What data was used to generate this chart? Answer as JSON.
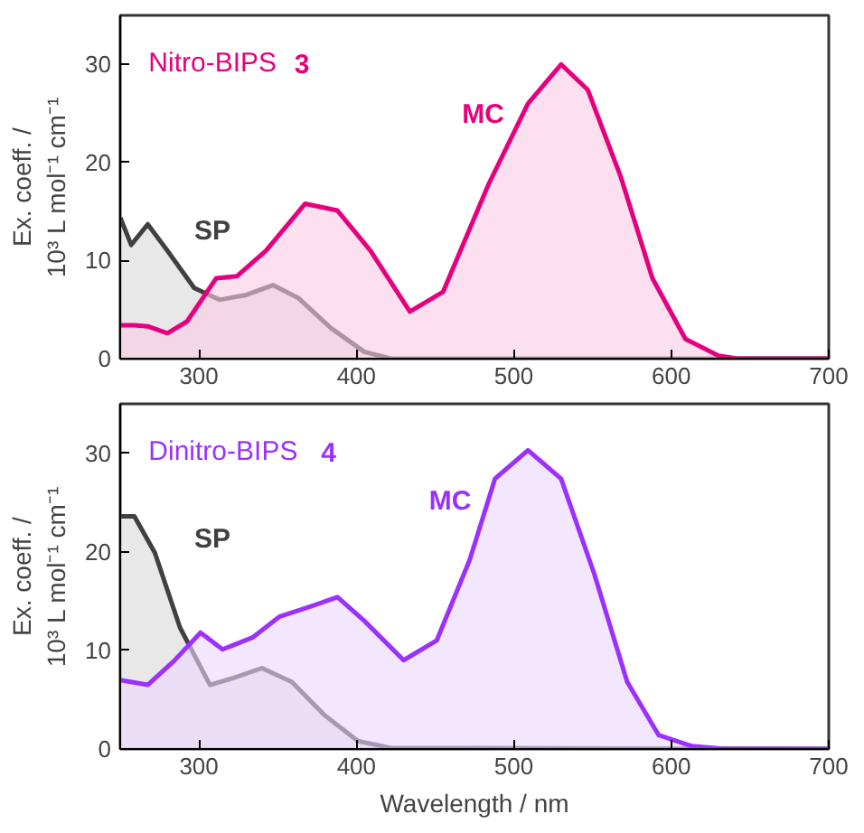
{
  "chart_data": [
    {
      "type": "area",
      "title": "Nitro-BIPS 3",
      "ylabel": "Ex. coeff. /\n10³ L mol⁻¹ cm⁻¹",
      "xlim": [
        250,
        700
      ],
      "ylim": [
        0,
        35
      ],
      "xticks": [
        300,
        400,
        500,
        600,
        700
      ],
      "yticks": [
        0,
        10,
        20,
        30
      ],
      "grid": false,
      "series": [
        {
          "name": "SP",
          "color": "#404040",
          "x": [
            250,
            257,
            267.5,
            280,
            297,
            313,
            330,
            347,
            363,
            384,
            405,
            422,
            700
          ],
          "values": [
            14.4,
            11.6,
            13.7,
            11,
            7.2,
            6,
            6.5,
            7.5,
            6.2,
            3.1,
            0.7,
            0,
            0
          ]
        },
        {
          "name": "MC",
          "color": "#e6007e",
          "x": [
            250,
            259,
            267.5,
            280,
            292.5,
            311,
            324,
            342.5,
            367.5,
            388,
            409,
            434,
            455,
            484,
            509,
            530,
            547,
            568,
            588,
            609,
            630,
            642,
            700
          ],
          "values": [
            3.4,
            3.4,
            3.3,
            2.6,
            3.8,
            8.2,
            8.4,
            11,
            15.8,
            15.1,
            11,
            4.8,
            6.8,
            17.8,
            26,
            30,
            27.4,
            18.5,
            8.2,
            2,
            0.3,
            0,
            0
          ]
        }
      ]
    },
    {
      "type": "area",
      "title": "Dinitro-BIPS 4",
      "xlabel": "Wavelength / nm",
      "ylabel": "Ex. coeff. /\n10³ L mol⁻¹ cm⁻¹",
      "xlim": [
        250,
        700
      ],
      "ylim": [
        0,
        35
      ],
      "xticks": [
        300,
        400,
        500,
        600,
        700
      ],
      "yticks": [
        0,
        10,
        20,
        30
      ],
      "grid": false,
      "series": [
        {
          "name": "SP",
          "color": "#404040",
          "x": [
            250,
            259,
            272,
            288,
            307,
            322,
            340,
            359,
            380,
            401,
            422,
            700
          ],
          "values": [
            23.6,
            23.6,
            19.9,
            12.3,
            6.5,
            7.2,
            8.2,
            6.8,
            3.4,
            0.8,
            0.1,
            0
          ]
        },
        {
          "name": "MC",
          "color": "#9b30ff",
          "x": [
            250,
            267.5,
            284,
            301,
            315,
            334,
            351,
            372,
            388,
            405,
            430,
            451,
            472,
            488,
            509,
            530,
            551,
            572,
            592,
            613,
            634,
            700
          ],
          "values": [
            7,
            6.5,
            8.9,
            11.8,
            10.1,
            11.3,
            13.4,
            14.5,
            15.4,
            13,
            9,
            11,
            19.2,
            27.4,
            30.3,
            27.4,
            17.8,
            6.8,
            1.4,
            0.3,
            0,
            0
          ]
        }
      ]
    }
  ]
}
